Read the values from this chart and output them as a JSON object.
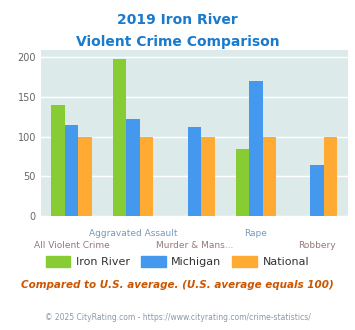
{
  "title_line1": "2019 Iron River",
  "title_line2": "Violent Crime Comparison",
  "categories": [
    "All Violent Crime",
    "Aggravated Assault",
    "Murder & Mans...",
    "Rape",
    "Robbery"
  ],
  "series": {
    "Iron River": [
      140,
      198,
      null,
      84,
      null
    ],
    "Michigan": [
      115,
      122,
      112,
      170,
      65
    ],
    "National": [
      100,
      100,
      100,
      100,
      100
    ]
  },
  "colors": {
    "Iron River": "#88cc33",
    "Michigan": "#4499ee",
    "National": "#ffaa33"
  },
  "ylim": [
    0,
    210
  ],
  "yticks": [
    0,
    50,
    100,
    150,
    200
  ],
  "xlabel_top": [
    "",
    "Aggravated Assault",
    "",
    "Rape",
    ""
  ],
  "xlabel_bottom": [
    "All Violent Crime",
    "",
    "Murder & Mans...",
    "",
    "Robbery"
  ],
  "background_color": "#ddeaea",
  "footer_text": "Compared to U.S. average. (U.S. average equals 100)",
  "copyright_text": "© 2025 CityRating.com - https://www.cityrating.com/crime-statistics/",
  "title_color": "#1a7acc",
  "footer_color": "#cc5500",
  "copyright_color": "#8899aa"
}
